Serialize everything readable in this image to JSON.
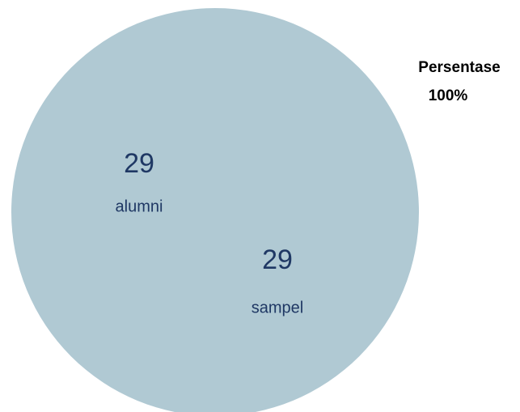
{
  "circle": {
    "items": [
      {
        "value": 29,
        "label": "alumni"
      },
      {
        "value": 29,
        "label": "sampel"
      }
    ]
  },
  "annotation": {
    "title": "Persentase",
    "value": "100%"
  }
}
